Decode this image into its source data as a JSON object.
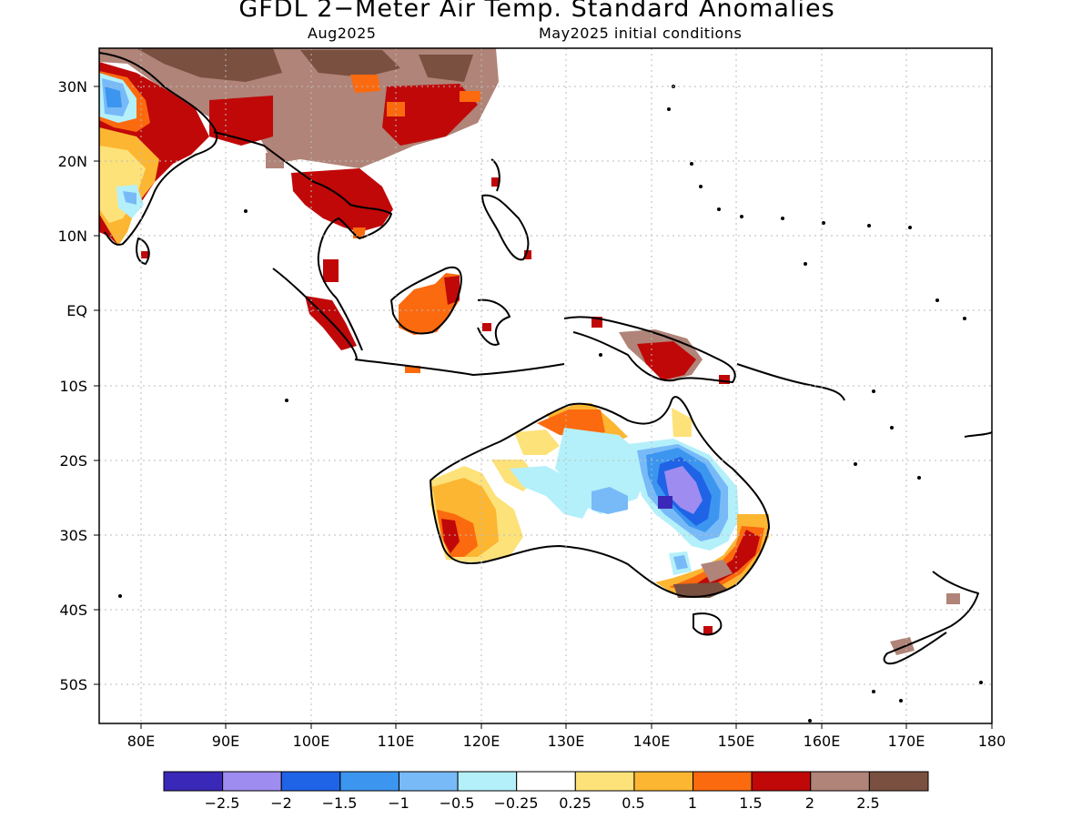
{
  "title": "GFDL 2−Meter Air Temp. Standard Anomalies",
  "forecast_month": "Aug2025",
  "initial_conditions": "May2025 initial conditions",
  "axes": {
    "lon_labels": [
      "80E",
      "90E",
      "100E",
      "110E",
      "120E",
      "130E",
      "140E",
      "150E",
      "160E",
      "170E",
      "180"
    ],
    "lat_labels": [
      "30N",
      "20N",
      "10N",
      "EQ",
      "10S",
      "20S",
      "30S",
      "40S",
      "50S"
    ]
  },
  "colorbar": {
    "labels": [
      "−2.5",
      "−2",
      "−1.5",
      "−1",
      "−0.5",
      "−0.25",
      "0.25",
      "0.5",
      "1",
      "1.5",
      "2",
      "2.5"
    ],
    "colors": [
      "#3a28b8",
      "#9e8cf0",
      "#1f63e6",
      "#3c96f0",
      "#78baf8",
      "#b4f0fa",
      "#ffffff",
      "#fde27a",
      "#fcb632",
      "#fb6a0e",
      "#c00808",
      "#b08478",
      "#7a5040"
    ]
  },
  "colors": {
    "land_hot": "#c00808",
    "land_warm": "#fb6a0e",
    "land_brown": "#b08478",
    "land_darkbrown": "#7a5040",
    "coast": "#000000",
    "grid": "#bbbbbb"
  }
}
